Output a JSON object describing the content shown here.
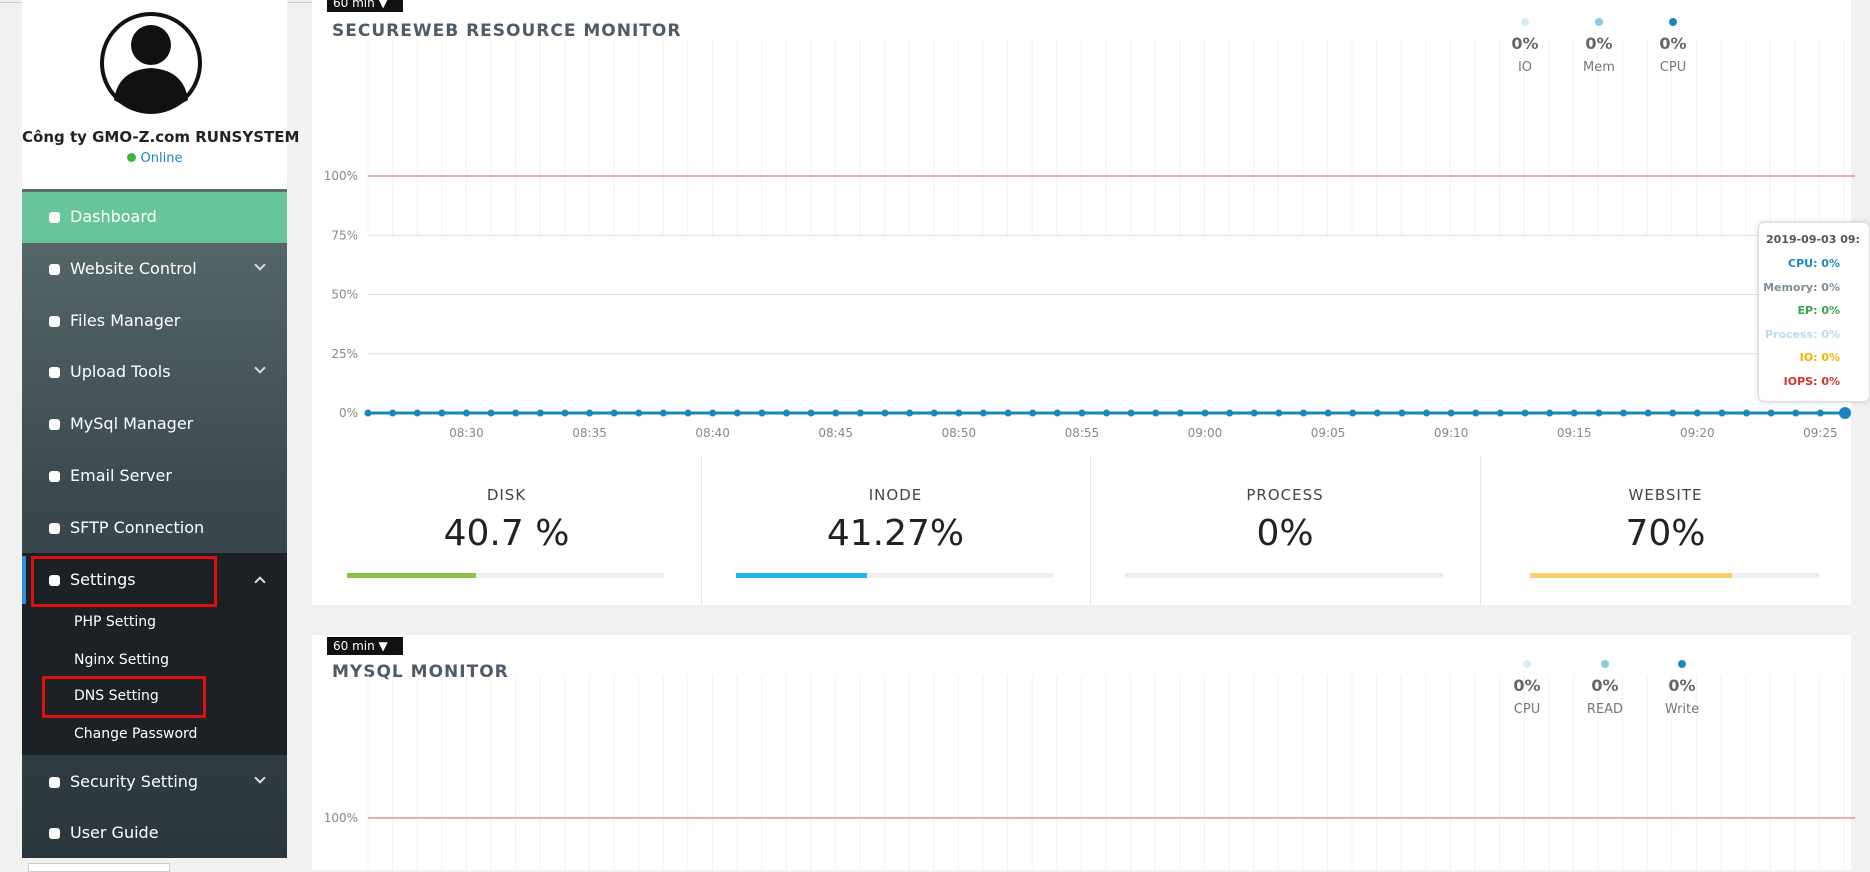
{
  "profile": {
    "name": "Công ty GMO-Z.com RUNSYSTEM",
    "status": "Online"
  },
  "menu": [
    "Dashboard",
    "Website Control",
    "Files Manager",
    "Upload Tools",
    "MySql Manager",
    "Email Server",
    "SFTP Connection",
    "Settings"
  ],
  "submenu": [
    "PHP Setting",
    "Nginx Setting",
    "DNS Setting",
    "Change Password"
  ],
  "menu_after": [
    "Security Setting",
    "User Guide"
  ],
  "resource_monitor": {
    "range": "60 min",
    "title": "SECUREWEB RESOURCE MONITOR",
    "legend": [
      {
        "name": "IO",
        "value": "0%",
        "color": "#d6ecf7"
      },
      {
        "name": "Mem",
        "value": "0%",
        "color": "#8ec9e4"
      },
      {
        "name": "CPU",
        "value": "0%",
        "color": "#1a86c0"
      }
    ],
    "chart": {
      "type": "line",
      "color": "#1a86c0",
      "threshold_color": "#e05a5a",
      "ylim": [
        0,
        150
      ],
      "xlim": [
        0,
        60
      ],
      "yticks": [
        {
          "value": 0,
          "label": "0%"
        },
        {
          "value": 25,
          "label": "25%"
        },
        {
          "value": 50,
          "label": "50%"
        },
        {
          "value": 75,
          "label": "75%"
        },
        {
          "value": 100,
          "label": "100%"
        }
      ],
      "xticks": [
        {
          "value": 4,
          "label": "08:30"
        },
        {
          "value": 9,
          "label": "08:35"
        },
        {
          "value": 14,
          "label": "08:40"
        },
        {
          "value": 19,
          "label": "08:45"
        },
        {
          "value": 24,
          "label": "08:50"
        },
        {
          "value": 29,
          "label": "08:55"
        },
        {
          "value": 34,
          "label": "09:00"
        },
        {
          "value": 39,
          "label": "09:05"
        },
        {
          "value": 44,
          "label": "09:10"
        },
        {
          "value": 49,
          "label": "09:15"
        },
        {
          "value": 54,
          "label": "09:20"
        },
        {
          "value": 59,
          "label": "09:25"
        }
      ],
      "threshold": 100,
      "values": [
        0,
        0,
        0,
        0,
        0,
        0,
        0,
        0,
        0,
        0,
        0,
        0,
        0,
        0,
        0,
        0,
        0,
        0,
        0,
        0,
        0,
        0,
        0,
        0,
        0,
        0,
        0,
        0,
        0,
        0,
        0,
        0,
        0,
        0,
        0,
        0,
        0,
        0,
        0,
        0,
        0,
        0,
        0,
        0,
        0,
        0,
        0,
        0,
        0,
        0,
        0,
        0,
        0,
        0,
        0,
        0,
        0,
        0,
        0,
        0,
        0
      ]
    },
    "tooltip": {
      "title": "2019-09-03 09:",
      "lines": [
        {
          "text": "CPU: 0%",
          "color": "#1a86c0"
        },
        {
          "text": "Memory: 0%",
          "color": "#7a8f9a"
        },
        {
          "text": "EP: 0%",
          "color": "#3aa64a"
        },
        {
          "text": "Process: 0%",
          "color": "#b9dcef"
        },
        {
          "text": "IO: 0%",
          "color": "#f0b400"
        },
        {
          "text": "IOPS: 0%",
          "color": "#d9302c"
        }
      ]
    },
    "stats": [
      {
        "label": "DISK",
        "value": 40.7,
        "value_label": "40.7 %",
        "color": "#8bc34a"
      },
      {
        "label": "INODE",
        "value": 41.27,
        "value_label": "41.27%",
        "color": "#1fb5ec"
      },
      {
        "label": "PROCESS",
        "value": 0,
        "value_label": "0%",
        "color": "#999999"
      },
      {
        "label": "WEBSITE",
        "value": 70,
        "value_label": "70%",
        "color": "#f5cf6a"
      }
    ]
  },
  "mysql_monitor": {
    "range": "60 min",
    "title": "MYSQL MONITOR",
    "legend": [
      {
        "name": "CPU",
        "value": "0%",
        "color": "#d6ecf7"
      },
      {
        "name": "READ",
        "value": "0%",
        "color": "#8ec9e4"
      },
      {
        "name": "Write",
        "value": "0%",
        "color": "#1a86c0"
      }
    ],
    "chart": {
      "ylim": [
        0,
        150
      ],
      "yticks": [
        {
          "value": 100,
          "label": "100%"
        }
      ],
      "threshold": 100,
      "threshold_color": "#e05a5a"
    }
  }
}
